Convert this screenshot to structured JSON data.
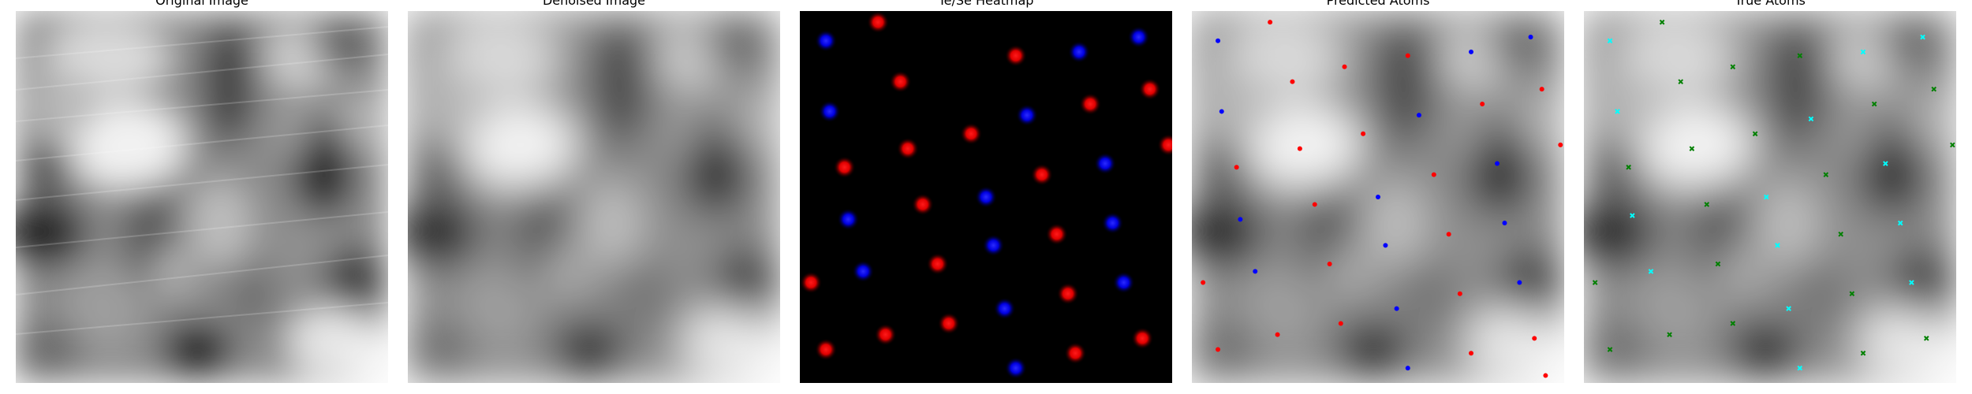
{
  "panels": [
    {
      "id": "original",
      "title": "Original Image"
    },
    {
      "id": "denoised",
      "title": "Denoised Image"
    },
    {
      "id": "heatmap",
      "title": "Te/Se Heatmap"
    },
    {
      "id": "predicted",
      "title": "Predicted Atoms"
    },
    {
      "id": "true",
      "title": "True Atoms"
    }
  ],
  "colors": {
    "background": "#000000",
    "te_red": "#ff0000",
    "se_blue": "#0000ff",
    "true_green": "#008000",
    "true_cyan": "#00ffff"
  },
  "heatmap_atoms": {
    "red": [
      [
        0.21,
        0.03
      ],
      [
        0.58,
        0.12
      ],
      [
        0.27,
        0.19
      ],
      [
        0.94,
        0.21
      ],
      [
        0.78,
        0.25
      ],
      [
        0.46,
        0.33
      ],
      [
        0.29,
        0.37
      ],
      [
        0.99,
        0.36
      ],
      [
        0.12,
        0.42
      ],
      [
        0.65,
        0.44
      ],
      [
        0.33,
        0.52
      ],
      [
        0.69,
        0.6
      ],
      [
        0.37,
        0.68
      ],
      [
        0.03,
        0.73
      ],
      [
        0.72,
        0.76
      ],
      [
        0.4,
        0.84
      ],
      [
        0.23,
        0.87
      ],
      [
        0.92,
        0.88
      ],
      [
        0.07,
        0.91
      ],
      [
        0.74,
        0.92
      ]
    ],
    "blue": [
      [
        0.07,
        0.08
      ],
      [
        0.75,
        0.11
      ],
      [
        0.91,
        0.07
      ],
      [
        0.08,
        0.27
      ],
      [
        0.61,
        0.28
      ],
      [
        0.82,
        0.41
      ],
      [
        0.5,
        0.5
      ],
      [
        0.13,
        0.56
      ],
      [
        0.84,
        0.57
      ],
      [
        0.52,
        0.63
      ],
      [
        0.17,
        0.7
      ],
      [
        0.87,
        0.73
      ],
      [
        0.55,
        0.8
      ],
      [
        0.58,
        0.96
      ]
    ]
  },
  "predicted_atoms": {
    "red": [
      [
        0.21,
        0.03
      ],
      [
        0.27,
        0.19
      ],
      [
        0.41,
        0.15
      ],
      [
        0.58,
        0.12
      ],
      [
        0.94,
        0.21
      ],
      [
        0.78,
        0.25
      ],
      [
        0.46,
        0.33
      ],
      [
        0.29,
        0.37
      ],
      [
        0.99,
        0.36
      ],
      [
        0.12,
        0.42
      ],
      [
        0.65,
        0.44
      ],
      [
        0.33,
        0.52
      ],
      [
        0.69,
        0.6
      ],
      [
        0.37,
        0.68
      ],
      [
        0.03,
        0.73
      ],
      [
        0.72,
        0.76
      ],
      [
        0.4,
        0.84
      ],
      [
        0.23,
        0.87
      ],
      [
        0.92,
        0.88
      ],
      [
        0.07,
        0.91
      ],
      [
        0.75,
        0.92
      ],
      [
        0.95,
        0.98
      ]
    ],
    "blue": [
      [
        0.07,
        0.08
      ],
      [
        0.75,
        0.11
      ],
      [
        0.91,
        0.07
      ],
      [
        0.08,
        0.27
      ],
      [
        0.61,
        0.28
      ],
      [
        0.82,
        0.41
      ],
      [
        0.5,
        0.5
      ],
      [
        0.13,
        0.56
      ],
      [
        0.84,
        0.57
      ],
      [
        0.52,
        0.63
      ],
      [
        0.17,
        0.7
      ],
      [
        0.88,
        0.73
      ],
      [
        0.55,
        0.8
      ],
      [
        0.58,
        0.96
      ]
    ]
  },
  "true_atoms": {
    "green": [
      [
        0.21,
        0.03
      ],
      [
        0.26,
        0.19
      ],
      [
        0.4,
        0.15
      ],
      [
        0.58,
        0.12
      ],
      [
        0.94,
        0.21
      ],
      [
        0.78,
        0.25
      ],
      [
        0.46,
        0.33
      ],
      [
        0.29,
        0.37
      ],
      [
        0.99,
        0.36
      ],
      [
        0.12,
        0.42
      ],
      [
        0.65,
        0.44
      ],
      [
        0.33,
        0.52
      ],
      [
        0.69,
        0.6
      ],
      [
        0.36,
        0.68
      ],
      [
        0.03,
        0.73
      ],
      [
        0.72,
        0.76
      ],
      [
        0.4,
        0.84
      ],
      [
        0.23,
        0.87
      ],
      [
        0.92,
        0.88
      ],
      [
        0.07,
        0.91
      ],
      [
        0.75,
        0.92
      ]
    ],
    "cyan": [
      [
        0.07,
        0.08
      ],
      [
        0.75,
        0.11
      ],
      [
        0.91,
        0.07
      ],
      [
        0.09,
        0.27
      ],
      [
        0.61,
        0.29
      ],
      [
        0.81,
        0.41
      ],
      [
        0.49,
        0.5
      ],
      [
        0.13,
        0.55
      ],
      [
        0.85,
        0.57
      ],
      [
        0.52,
        0.63
      ],
      [
        0.18,
        0.7
      ],
      [
        0.88,
        0.73
      ],
      [
        0.55,
        0.8
      ],
      [
        0.58,
        0.96
      ]
    ]
  }
}
